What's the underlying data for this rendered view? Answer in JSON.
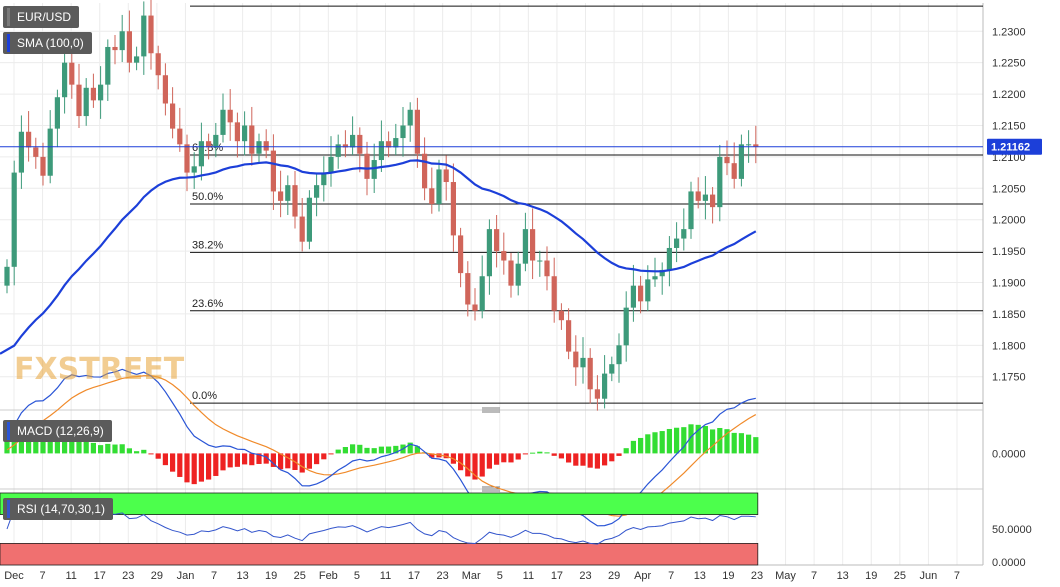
{
  "title_tag": "EUR/USD",
  "sma_tag": "SMA (100,0)",
  "macd_tag": "MACD (12,26,9)",
  "rsi_tag": "RSI (14,70,30,1)",
  "watermark": "FXSTREET",
  "colors": {
    "up": "#3d9a7a",
    "down": "#d0655a",
    "sma": "#1c3fd9",
    "macd": "#2a55d6",
    "signal": "#f08a2a",
    "hist_up": "#33dd33",
    "hist_down": "#ee2222",
    "rsi": "#3355cc",
    "rsi_over": "#4cff4c",
    "rsi_under": "#f07070",
    "last": "#1c3fd9",
    "fib": "#111111"
  },
  "chart_data": [
    {
      "type": "candlestick",
      "symbol": "EUR/USD",
      "ylim": [
        1.1705,
        1.2345
      ],
      "y_ticks": [
        "1.2300",
        "1.2250",
        "1.2200",
        "1.2150",
        "1.2100",
        "1.2050",
        "1.2000",
        "1.1950",
        "1.1900",
        "1.1850",
        "1.1800",
        "1.1750"
      ],
      "last_price": "1.21162",
      "x_labels": [
        "Dec",
        "7",
        "11",
        "17",
        "23",
        "29",
        "Jan",
        "7",
        "13",
        "19",
        "25",
        "Feb",
        "5",
        "11",
        "17",
        "23",
        "Mar",
        "5",
        "11",
        "17",
        "23",
        "29",
        "Apr",
        "7",
        "13",
        "19",
        "23",
        "May",
        "7",
        "13",
        "19",
        "25",
        "Jun",
        "7"
      ],
      "fibonacci": [
        {
          "label": "61.8%",
          "value": 1.2103
        },
        {
          "label": "50.0%",
          "value": 1.2025
        },
        {
          "label": "38.2%",
          "value": 1.1948
        },
        {
          "label": "23.6%",
          "value": 1.1855
        },
        {
          "label": "0.0%",
          "value": 1.1708
        },
        {
          "label": "",
          "value": 1.234
        }
      ],
      "closes": [
        1.1925,
        1.2075,
        1.214,
        1.2115,
        1.21,
        1.207,
        1.2145,
        1.2195,
        1.225,
        1.2215,
        1.2165,
        1.221,
        1.219,
        1.2215,
        1.2275,
        1.227,
        1.23,
        1.225,
        1.226,
        1.2325,
        1.2265,
        1.223,
        1.2185,
        1.2145,
        1.212,
        1.2075,
        1.2085,
        1.2125,
        1.2115,
        1.2135,
        1.2175,
        1.2155,
        1.2125,
        1.215,
        1.2105,
        1.2125,
        1.211,
        1.2045,
        1.203,
        1.2055,
        1.2005,
        1.1965,
        1.2035,
        1.2055,
        1.2075,
        1.21,
        1.212,
        1.2115,
        1.2135,
        1.2105,
        1.2065,
        1.2095,
        1.2125,
        1.2115,
        1.213,
        1.215,
        1.2175,
        1.2105,
        1.205,
        1.2025,
        1.208,
        1.206,
        1.1975,
        1.1915,
        1.1865,
        1.1855,
        1.191,
        1.1985,
        1.195,
        1.1935,
        1.1895,
        1.193,
        1.1985,
        1.1935,
        1.1935,
        1.191,
        1.1855,
        1.184,
        1.179,
        1.1765,
        1.178,
        1.173,
        1.1715,
        1.1755,
        1.177,
        1.18,
        1.186,
        1.1895,
        1.187,
        1.1905,
        1.191,
        1.192,
        1.1955,
        1.197,
        1.1985,
        1.2045,
        1.203,
        1.204,
        1.202,
        1.21,
        1.209,
        1.2065,
        1.212,
        1.212,
        1.2116
      ],
      "sma_start": 1.178,
      "macd": {
        "ylim": [
          -0.0035,
          0.004
        ],
        "tick": "0.0000"
      },
      "rsi": {
        "ticks": [
          "50.0000",
          "0.0000"
        ],
        "overbought": 70,
        "oversold": 30,
        "last": 68
      }
    }
  ]
}
